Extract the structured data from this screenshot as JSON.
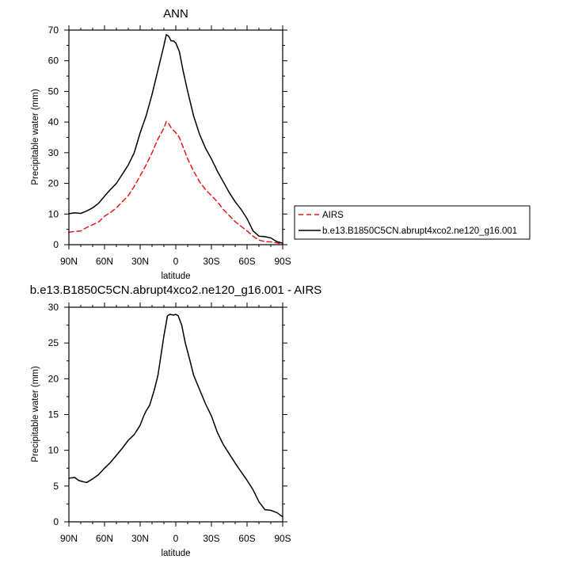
{
  "chart_data": [
    {
      "type": "line",
      "title": "ANN",
      "xlabel": "latitude",
      "ylabel": "Precipitable water (mm)",
      "xlim": [
        90,
        -90
      ],
      "ylim": [
        0,
        70
      ],
      "x_ticks": [
        90,
        60,
        30,
        0,
        -30,
        -60,
        -90
      ],
      "x_tick_labels": [
        "90N",
        "60N",
        "30N",
        "0",
        "30S",
        "60S",
        "90S"
      ],
      "y_ticks": [
        0,
        10,
        20,
        30,
        40,
        50,
        60,
        70
      ],
      "y_tick_labels": [
        "0",
        "10",
        "20",
        "30",
        "40",
        "50",
        "60",
        "70"
      ],
      "grid": false,
      "legend_position": "right",
      "series": [
        {
          "name": "AIRS",
          "color": "#e41a1c",
          "dash": "dashed",
          "x": [
            90,
            85,
            80,
            75,
            70,
            65,
            60,
            55,
            50,
            45,
            40,
            35,
            30,
            25,
            20,
            15,
            10,
            8,
            6,
            4,
            2,
            0,
            -3,
            -6,
            -10,
            -15,
            -20,
            -25,
            -30,
            -35,
            -40,
            -45,
            -50,
            -55,
            -60,
            -65,
            -70,
            -75,
            -80,
            -85,
            -90
          ],
          "y": [
            4.1,
            4.3,
            4.5,
            5.6,
            6.5,
            7.4,
            9.3,
            10.5,
            12.0,
            14.0,
            16.0,
            19.0,
            22.5,
            26.0,
            30.0,
            34.5,
            38.0,
            40.2,
            39.5,
            38.2,
            37.3,
            36.5,
            35.0,
            32.0,
            28.0,
            24.0,
            20.5,
            18.0,
            16.0,
            14.0,
            11.5,
            9.5,
            7.5,
            6.0,
            4.5,
            2.8,
            1.5,
            1.0,
            0.9,
            0.6,
            0.1
          ]
        },
        {
          "name": "b.e13.B1850C5CN.abrupt4xco2.ne120_g16.001",
          "color": "#000000",
          "dash": "solid",
          "x": [
            90,
            85,
            80,
            75,
            70,
            65,
            60,
            55,
            50,
            45,
            40,
            35,
            30,
            25,
            20,
            15,
            10,
            8,
            6,
            4,
            2,
            0,
            -3,
            -6,
            -10,
            -15,
            -20,
            -25,
            -30,
            -35,
            -40,
            -45,
            -50,
            -55,
            -60,
            -65,
            -70,
            -75,
            -80,
            -85,
            -90
          ],
          "y": [
            10.1,
            10.4,
            10.2,
            11.0,
            12.0,
            13.5,
            15.8,
            18.0,
            20.0,
            23.0,
            26.0,
            30.0,
            36.5,
            42.0,
            49.0,
            57.0,
            65.0,
            68.5,
            68.0,
            66.5,
            66.5,
            65.8,
            63.0,
            57.0,
            50.0,
            42.0,
            36.0,
            31.5,
            28.0,
            24.0,
            20.5,
            17.0,
            14.0,
            11.5,
            8.5,
            4.5,
            2.8,
            2.6,
            2.2,
            1.0,
            0.5
          ]
        }
      ]
    },
    {
      "type": "line",
      "title": "b.e13.B1850C5CN.abrupt4xco2.ne120_g16.001 - AIRS",
      "xlabel": "latitude",
      "ylabel": "Precipitable water (mm)",
      "xlim": [
        90,
        -90
      ],
      "ylim": [
        0,
        30
      ],
      "x_ticks": [
        90,
        60,
        30,
        0,
        -30,
        -60,
        -90
      ],
      "x_tick_labels": [
        "90N",
        "60N",
        "30N",
        "0",
        "30S",
        "60S",
        "90S"
      ],
      "y_ticks": [
        0,
        5,
        10,
        15,
        20,
        25,
        30
      ],
      "y_tick_labels": [
        "0",
        "5",
        "10",
        "15",
        "20",
        "25",
        "30"
      ],
      "grid": false,
      "series": [
        {
          "color": "#000000",
          "dash": "solid",
          "x": [
            90,
            85,
            82,
            78,
            75,
            70,
            65,
            60,
            55,
            50,
            45,
            40,
            35,
            30,
            27,
            25,
            22,
            18,
            15,
            10,
            7,
            5,
            2,
            0,
            -2,
            -5,
            -8,
            -12,
            -15,
            -20,
            -25,
            -30,
            -35,
            -40,
            -45,
            -50,
            -55,
            -60,
            -65,
            -70,
            -75,
            -80,
            -85,
            -90
          ],
          "y": [
            6.1,
            6.2,
            5.8,
            5.6,
            5.5,
            6.0,
            6.6,
            7.5,
            8.3,
            9.3,
            10.3,
            11.4,
            12.2,
            13.5,
            14.8,
            15.5,
            16.3,
            18.5,
            20.5,
            26.0,
            28.8,
            29.0,
            28.9,
            29.0,
            28.8,
            27.5,
            25.0,
            22.5,
            20.5,
            18.5,
            16.5,
            14.8,
            12.5,
            10.8,
            9.5,
            8.2,
            7.0,
            5.8,
            4.5,
            2.8,
            1.7,
            1.6,
            1.3,
            0.7
          ]
        }
      ]
    }
  ]
}
